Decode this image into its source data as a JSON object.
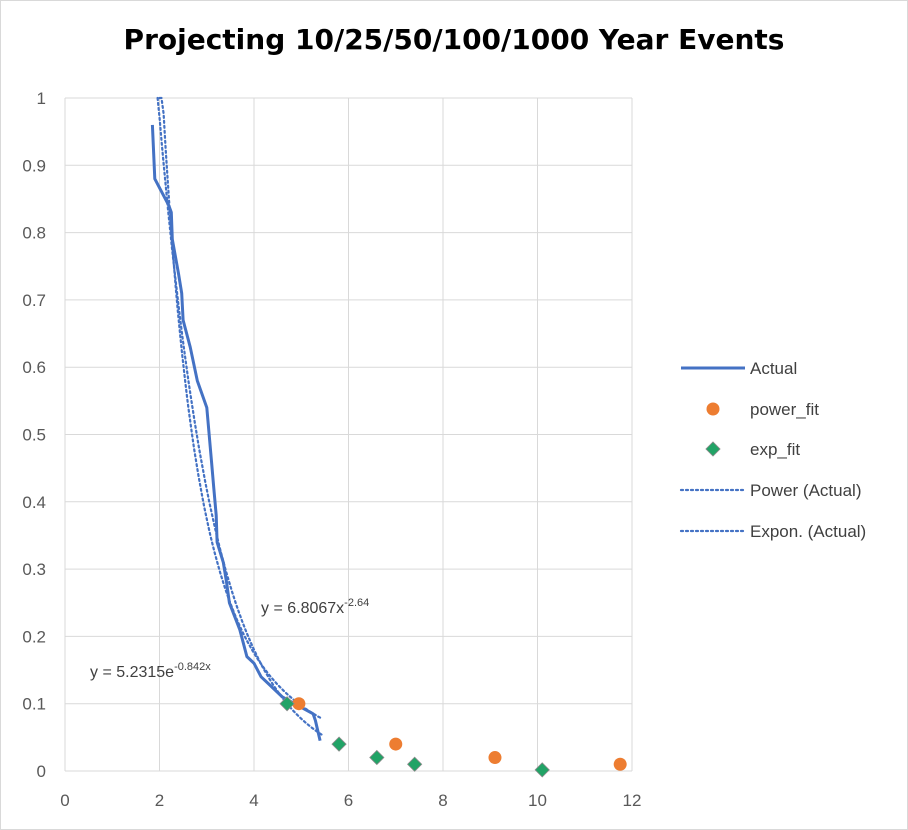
{
  "chart_data": {
    "type": "scatter",
    "title": "Projecting 10/25/50/100/1000 Year Events",
    "xlim": [
      0,
      12
    ],
    "ylim": [
      0,
      1
    ],
    "x_ticks": [
      "0",
      "2",
      "4",
      "6",
      "8",
      "10",
      "12"
    ],
    "y_ticks": [
      "0",
      "0.1",
      "0.2",
      "0.3",
      "0.4",
      "0.5",
      "0.6",
      "0.7",
      "0.8",
      "0.9",
      "1"
    ],
    "grid": true,
    "legend_position": "right",
    "series": [
      {
        "name": "Actual",
        "kind": "line",
        "color": "#4472C4",
        "points": [
          [
            1.85,
            0.96
          ],
          [
            1.9,
            0.88
          ],
          [
            2.2,
            0.84
          ],
          [
            2.25,
            0.83
          ],
          [
            2.27,
            0.79
          ],
          [
            2.4,
            0.74
          ],
          [
            2.47,
            0.71
          ],
          [
            2.5,
            0.67
          ],
          [
            2.65,
            0.63
          ],
          [
            2.8,
            0.58
          ],
          [
            3.0,
            0.54
          ],
          [
            3.1,
            0.46
          ],
          [
            3.15,
            0.42
          ],
          [
            3.2,
            0.38
          ],
          [
            3.22,
            0.34
          ],
          [
            3.35,
            0.31
          ],
          [
            3.42,
            0.28
          ],
          [
            3.48,
            0.25
          ],
          [
            3.7,
            0.21
          ],
          [
            3.85,
            0.17
          ],
          [
            4.0,
            0.16
          ],
          [
            4.15,
            0.14
          ],
          [
            4.3,
            0.13
          ],
          [
            4.6,
            0.11
          ],
          [
            5.25,
            0.085
          ],
          [
            5.3,
            0.075
          ],
          [
            5.4,
            0.045
          ]
        ]
      },
      {
        "name": "power_fit",
        "kind": "marker",
        "marker": "circle",
        "color": "#ED7D31",
        "points": [
          [
            4.95,
            0.1
          ],
          [
            7.0,
            0.04
          ],
          [
            9.1,
            0.02
          ],
          [
            11.75,
            0.01
          ]
        ]
      },
      {
        "name": "exp_fit",
        "kind": "marker",
        "marker": "diamond",
        "color": "#21A366",
        "points": [
          [
            4.7,
            0.1
          ],
          [
            5.8,
            0.04
          ],
          [
            6.6,
            0.02
          ],
          [
            7.4,
            0.01
          ],
          [
            10.1,
            0.0016
          ]
        ]
      },
      {
        "name": "Power (Actual)",
        "kind": "trend",
        "model": "power",
        "a": 6.8067,
        "b": -2.64,
        "x_range": [
          2.0,
          5.45
        ],
        "color": "#4472C4"
      },
      {
        "name": "Expon. (Actual)",
        "kind": "trend",
        "model": "exp",
        "a": 5.2315,
        "b": -0.842,
        "x_range": [
          1.96,
          5.45
        ],
        "color": "#4472C4"
      }
    ],
    "annotations": [
      {
        "base": "y = 6.8067x",
        "exp": "-2.64"
      },
      {
        "base": "y = 5.2315e",
        "exp": "-0.842x"
      }
    ]
  }
}
